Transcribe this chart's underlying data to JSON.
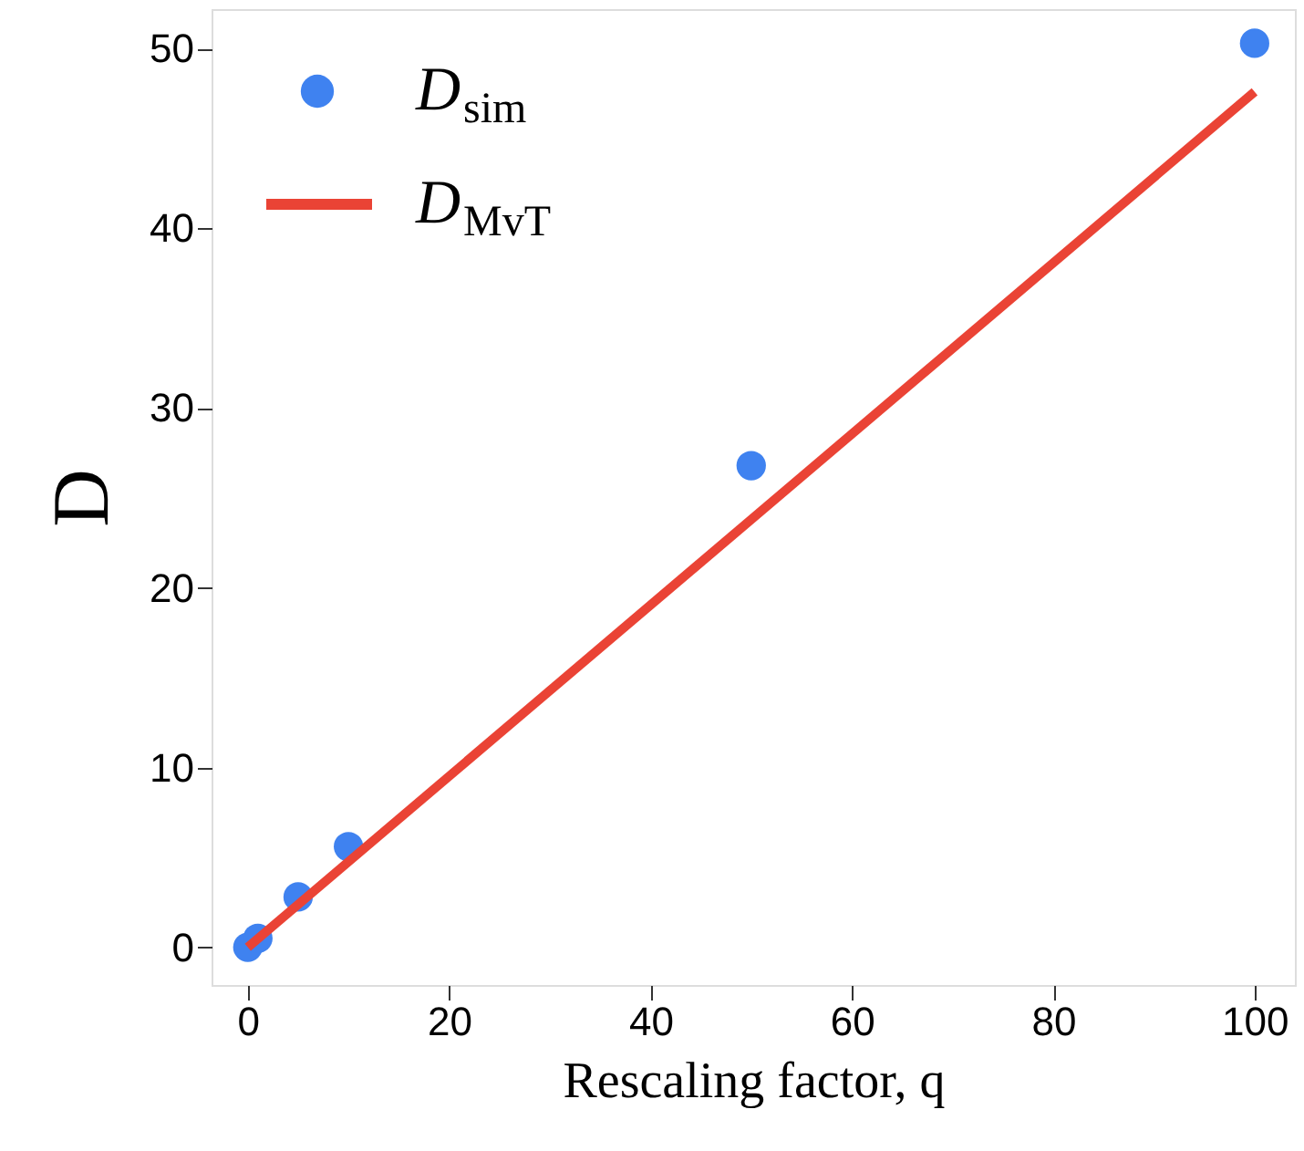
{
  "chart_data": {
    "type": "scatter",
    "xlabel": "Rescaling factor, q",
    "ylabel": "D",
    "xlim": [
      -3.6,
      104
    ],
    "ylim": [
      -2.1,
      52.2
    ],
    "xticks": [
      0,
      20,
      40,
      60,
      80,
      100
    ],
    "yticks": [
      0,
      10,
      20,
      30,
      40,
      50
    ],
    "grid": false,
    "legend": "top left",
    "series": [
      {
        "name": "D$_{sim}$",
        "color": "#3f82f0",
        "marker": "circle",
        "x": [
          0,
          1,
          5,
          10,
          50,
          100
        ],
        "values": [
          0,
          0.5,
          2.8,
          5.6,
          26.8,
          50.3
        ]
      },
      {
        "name": "D$_{MvT}$",
        "type": "line",
        "color": "#ea4335",
        "line_style": "solid",
        "marker": "none",
        "x": [
          0,
          100
        ],
        "values": [
          0,
          47.6
        ]
      }
    ]
  }
}
